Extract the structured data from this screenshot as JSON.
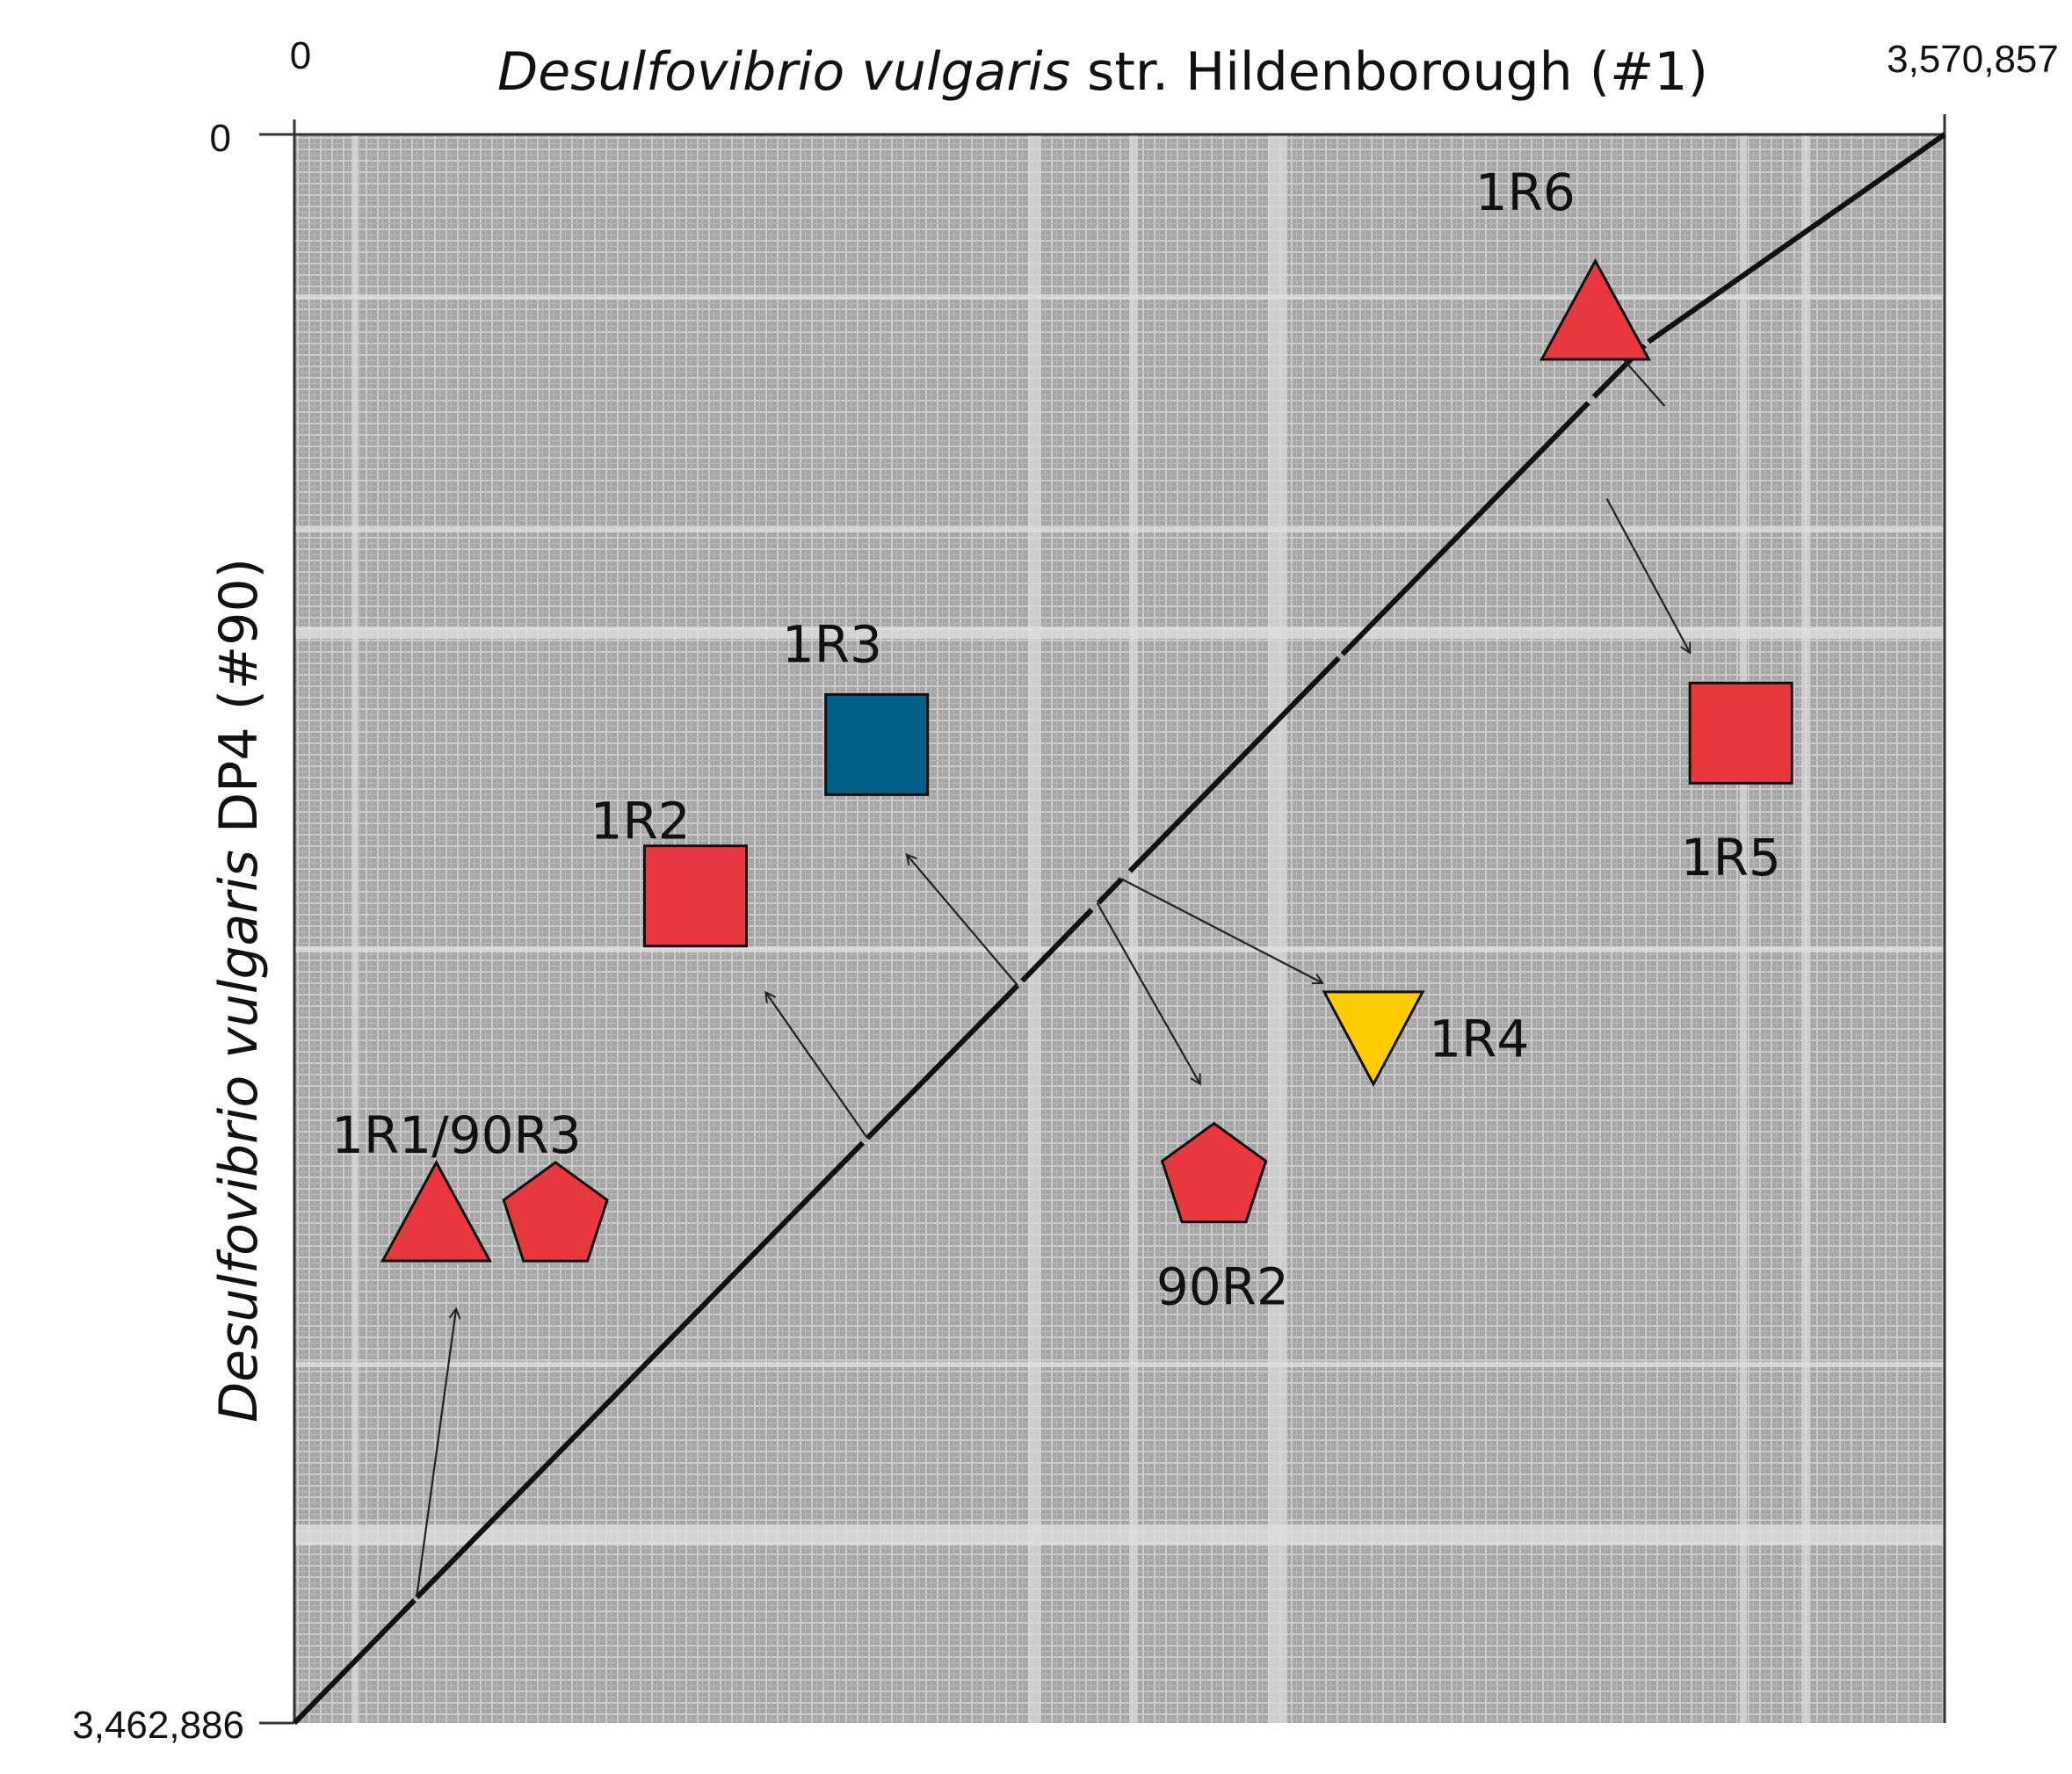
{
  "chart_data": {
    "type": "dot-plot",
    "x_title_italic": "Desulfovibrio vulgaris",
    "x_title_rest": " str. Hildenborough (#1)",
    "y_title_italic": "Desulfovibrio vulgaris",
    "y_title_rest": " DP4 (#90)",
    "xlim": [
      0,
      3570857
    ],
    "ylim": [
      0,
      3462886
    ],
    "x_tick_labels": [
      "0",
      "3,570,857"
    ],
    "y_tick_labels": [
      "0",
      "3,462,886"
    ],
    "alignment_segments": [
      [
        {
          "x": 0,
          "y": 3462886
        },
        {
          "x": 260000,
          "y": 3195000
        }
      ],
      [
        {
          "x": 265000,
          "y": 3189000
        },
        {
          "x": 1230000,
          "y": 2198000
        }
      ],
      [
        {
          "x": 1240000,
          "y": 2188000
        },
        {
          "x": 1565000,
          "y": 1855000
        }
      ],
      [
        {
          "x": 1575000,
          "y": 1845000
        },
        {
          "x": 1725000,
          "y": 1690000
        }
      ],
      [
        {
          "x": 1740000,
          "y": 1675000
        },
        {
          "x": 1790000,
          "y": 1623000
        }
      ],
      [
        {
          "x": 1808000,
          "y": 1606000
        },
        {
          "x": 2260000,
          "y": 1141000
        }
      ],
      [
        {
          "x": 2268000,
          "y": 1133000
        },
        {
          "x": 2800000,
          "y": 585000
        }
      ],
      [
        {
          "x": 2812000,
          "y": 572000
        },
        {
          "x": 2922000,
          "y": 460000
        }
      ],
      [
        {
          "x": 2930000,
          "y": 452000
        },
        {
          "x": 3570857,
          "y": 0
        }
      ]
    ],
    "markers": [
      {
        "id": "1R1",
        "shape": "triangle-up",
        "color": "#e8383d",
        "x": 307000,
        "y": 2350000
      },
      {
        "id": "90R3",
        "shape": "pentagon",
        "color": "#e8383d",
        "x": 565000,
        "y": 2350000
      },
      {
        "id": "1R2",
        "shape": "square",
        "color": "#e8383d",
        "x": 868000,
        "y": 1660000
      },
      {
        "id": "1R3",
        "shape": "square",
        "color": "#005f85",
        "x": 1260000,
        "y": 1330000
      },
      {
        "id": "1R4",
        "shape": "triangle-down",
        "color": "#ffcc00",
        "x": 2335000,
        "y": 1965000
      },
      {
        "id": "90R2",
        "shape": "pentagon",
        "color": "#e8383d",
        "x": 1990000,
        "y": 2265000
      },
      {
        "id": "1R5",
        "shape": "square",
        "color": "#e8383d",
        "x": 3130000,
        "y": 1305000
      },
      {
        "id": "1R6",
        "shape": "triangle-up",
        "color": "#e8383d",
        "x": 2815000,
        "y": 385000
      }
    ],
    "labels": [
      {
        "text": "1R1/90R3",
        "x": 80000,
        "y": 2220000
      },
      {
        "text": "1R2",
        "x": 640000,
        "y": 1535000
      },
      {
        "text": "1R3",
        "x": 1055000,
        "y": 1150000
      },
      {
        "text": "1R4",
        "x": 2455000,
        "y": 2010000
      },
      {
        "text": "90R2",
        "x": 1865000,
        "y": 2550000
      },
      {
        "text": "1R5",
        "x": 3000000,
        "y": 1615000
      },
      {
        "text": "1R6",
        "x": 2555000,
        "y": 165000
      }
    ],
    "arrows": [
      {
        "from": {
          "x": 265000,
          "y": 3185000
        },
        "to": {
          "x": 350000,
          "y": 2560000
        }
      },
      {
        "from": {
          "x": 1240000,
          "y": 2188000
        },
        "to": {
          "x": 1020000,
          "y": 1870000
        }
      },
      {
        "from": {
          "x": 1565000,
          "y": 1855000
        },
        "to": {
          "x": 1325000,
          "y": 1570000
        }
      },
      {
        "from": {
          "x": 1790000,
          "y": 1623000
        },
        "to": {
          "x": 2225000,
          "y": 1850000
        }
      },
      {
        "from": {
          "x": 1737000,
          "y": 1675000
        },
        "to": {
          "x": 1960000,
          "y": 2070000
        }
      },
      {
        "from": {
          "x": 2965000,
          "y": 592000
        },
        "to": {
          "x": 2845000,
          "y": 455000
        }
      },
      {
        "from": {
          "x": 2840000,
          "y": 794000
        },
        "to": {
          "x": 3020000,
          "y": 1130000
        }
      }
    ]
  }
}
